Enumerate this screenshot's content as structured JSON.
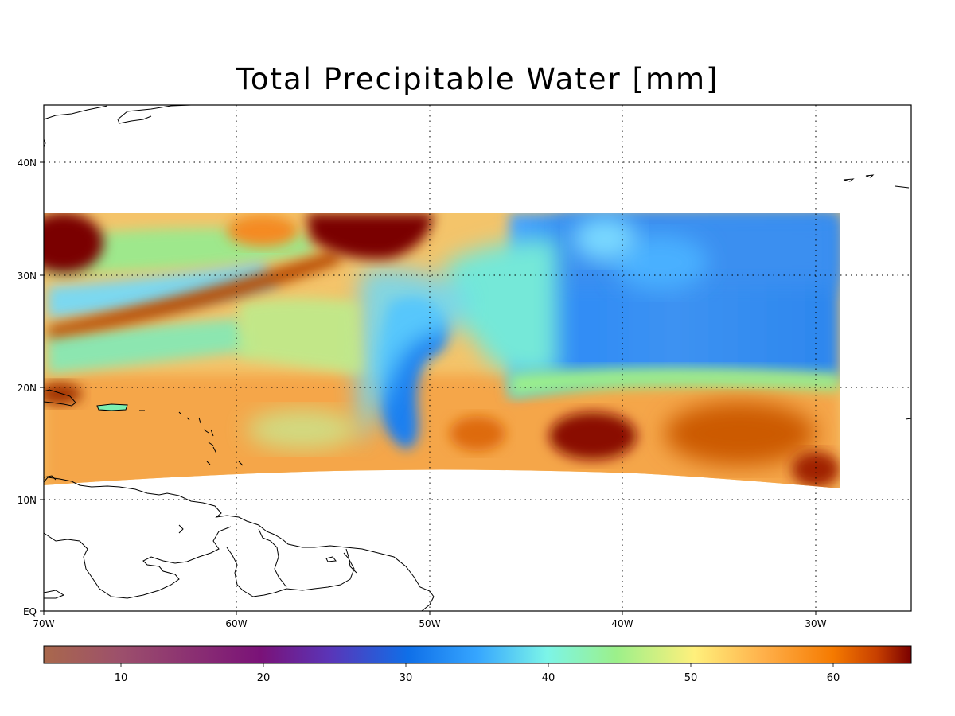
{
  "title": "Total Precipitable Water [mm]",
  "map": {
    "lon_labels": [
      "70W",
      "60W",
      "50W",
      "40W",
      "30W"
    ],
    "lat_labels": [
      "EQ",
      "10N",
      "20N",
      "30N",
      "40N"
    ],
    "lon_range": [
      -70,
      -25
    ],
    "lat_range": [
      0,
      45
    ],
    "grid": "dotted",
    "data_extent": {
      "lon": [
        -70,
        -29
      ],
      "lat_top": 35.5
    }
  },
  "colorbar": {
    "ticks": [
      "10",
      "20",
      "30",
      "40",
      "50",
      "60"
    ],
    "range": [
      5,
      66
    ],
    "colors": [
      "#a9684c",
      "#9c4f6c",
      "#7a1278",
      "#5a35b8",
      "#0f6fe8",
      "#36a6ff",
      "#7cf5e8",
      "#9cf08a",
      "#fff07c",
      "#ffb04a",
      "#f57a00",
      "#d24d00",
      "#7a0000"
    ]
  }
}
